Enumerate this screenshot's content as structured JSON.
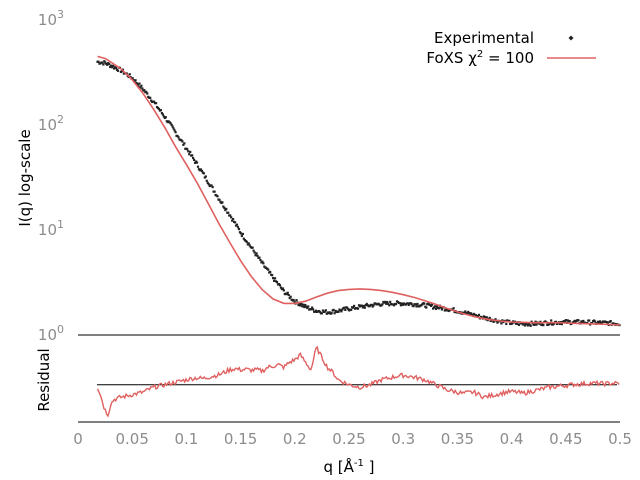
{
  "chart_data": [
    {
      "type": "scatter",
      "panel": "fit",
      "title": "",
      "xlabel": "",
      "ylabel": "I(q) log-scale",
      "yscale": "log",
      "xlim": [
        0,
        0.5
      ],
      "ylim": [
        1,
        1000
      ],
      "yticks": [
        {
          "value": 1,
          "base": "10",
          "exp": "0"
        },
        {
          "value": 10,
          "base": "10",
          "exp": "1"
        },
        {
          "value": 100,
          "base": "10",
          "exp": "2"
        },
        {
          "value": 1000,
          "base": "10",
          "exp": "3"
        }
      ],
      "legend": {
        "position": "top-right",
        "experimental_label": "Experimental",
        "fit_label_prefix": "FoXS χ",
        "fit_label_sup": "2",
        "fit_label_suffix": " = 100"
      },
      "series": [
        {
          "name": "Experimental",
          "style": "points",
          "color": "#222222",
          "x": [
            0.018,
            0.025,
            0.03,
            0.04,
            0.05,
            0.06,
            0.07,
            0.08,
            0.09,
            0.1,
            0.11,
            0.12,
            0.13,
            0.14,
            0.15,
            0.16,
            0.17,
            0.18,
            0.19,
            0.2,
            0.21,
            0.22,
            0.23,
            0.24,
            0.25,
            0.26,
            0.27,
            0.28,
            0.29,
            0.3,
            0.31,
            0.32,
            0.33,
            0.34,
            0.35,
            0.36,
            0.37,
            0.38,
            0.39,
            0.4,
            0.41,
            0.42,
            0.43,
            0.44,
            0.45,
            0.46,
            0.47,
            0.48,
            0.49,
            0.5
          ],
          "y": [
            400,
            390,
            370,
            330,
            280,
            220,
            165,
            120,
            85,
            60,
            42,
            29,
            20,
            14,
            9.5,
            6.8,
            4.8,
            3.5,
            2.6,
            2.1,
            1.85,
            1.7,
            1.65,
            1.7,
            1.78,
            1.85,
            1.92,
            1.98,
            2.0,
            2.0,
            1.97,
            1.92,
            1.85,
            1.78,
            1.7,
            1.6,
            1.5,
            1.42,
            1.35,
            1.3,
            1.28,
            1.28,
            1.3,
            1.32,
            1.33,
            1.33,
            1.32,
            1.31,
            1.3,
            1.28
          ]
        },
        {
          "name": "FoXS χ2 = 100",
          "style": "line",
          "color": "#e06060",
          "x": [
            0.018,
            0.025,
            0.03,
            0.04,
            0.05,
            0.06,
            0.07,
            0.08,
            0.09,
            0.1,
            0.11,
            0.12,
            0.13,
            0.14,
            0.15,
            0.16,
            0.17,
            0.18,
            0.19,
            0.2,
            0.21,
            0.22,
            0.23,
            0.24,
            0.25,
            0.26,
            0.27,
            0.28,
            0.29,
            0.3,
            0.31,
            0.32,
            0.33,
            0.34,
            0.35,
            0.36,
            0.37,
            0.38,
            0.39,
            0.4,
            0.41,
            0.42,
            0.43,
            0.44,
            0.45,
            0.46,
            0.47,
            0.48,
            0.49,
            0.5
          ],
          "y": [
            450,
            430,
            400,
            340,
            270,
            200,
            140,
            95,
            62,
            42,
            28,
            18,
            11.5,
            7.6,
            5.1,
            3.6,
            2.7,
            2.2,
            2.0,
            2.0,
            2.1,
            2.3,
            2.5,
            2.65,
            2.72,
            2.75,
            2.72,
            2.65,
            2.55,
            2.42,
            2.28,
            2.12,
            1.96,
            1.8,
            1.66,
            1.55,
            1.46,
            1.4,
            1.36,
            1.33,
            1.32,
            1.31,
            1.31,
            1.31,
            1.3,
            1.29,
            1.28,
            1.27,
            1.26,
            1.25
          ]
        }
      ]
    },
    {
      "type": "line",
      "panel": "residual",
      "title": "",
      "xlabel_prefix": "q [Å",
      "xlabel_sup": "-1",
      "xlabel_suffix": " ]",
      "ylabel": "Residual",
      "xlim": [
        0,
        0.5
      ],
      "ylim": [
        -1.5,
        2.0
      ],
      "xticks": [
        "0",
        "0.05",
        "0.1",
        "0.15",
        "0.2",
        "0.25",
        "0.3",
        "0.35",
        "0.4",
        "0.45",
        "0.5"
      ],
      "xtick_values": [
        0,
        0.05,
        0.1,
        0.15,
        0.2,
        0.25,
        0.3,
        0.35,
        0.4,
        0.45,
        0.5
      ],
      "zero_line": 0,
      "series": [
        {
          "name": "",
          "color": "#e06060",
          "x": [
            0.018,
            0.02,
            0.022,
            0.024,
            0.026,
            0.028,
            0.03,
            0.033,
            0.036,
            0.04,
            0.045,
            0.05,
            0.055,
            0.06,
            0.065,
            0.07,
            0.075,
            0.08,
            0.085,
            0.09,
            0.095,
            0.1,
            0.105,
            0.11,
            0.115,
            0.12,
            0.125,
            0.13,
            0.135,
            0.14,
            0.145,
            0.15,
            0.155,
            0.16,
            0.165,
            0.17,
            0.175,
            0.18,
            0.185,
            0.19,
            0.195,
            0.2,
            0.205,
            0.21,
            0.215,
            0.22,
            0.225,
            0.23,
            0.235,
            0.24,
            0.245,
            0.25,
            0.255,
            0.26,
            0.265,
            0.27,
            0.275,
            0.28,
            0.285,
            0.29,
            0.295,
            0.3,
            0.305,
            0.31,
            0.315,
            0.32,
            0.325,
            0.33,
            0.335,
            0.34,
            0.345,
            0.35,
            0.355,
            0.36,
            0.365,
            0.37,
            0.375,
            0.38,
            0.385,
            0.39,
            0.395,
            0.4,
            0.405,
            0.41,
            0.415,
            0.42,
            0.425,
            0.43,
            0.435,
            0.44,
            0.445,
            0.45,
            0.455,
            0.46,
            0.465,
            0.47,
            0.475,
            0.48,
            0.485,
            0.49,
            0.495,
            0.5
          ],
          "y": [
            -0.1,
            -0.3,
            -0.6,
            -0.9,
            -1.1,
            -1.2,
            -0.8,
            -0.6,
            -0.55,
            -0.5,
            -0.45,
            -0.4,
            -0.35,
            -0.3,
            -0.2,
            -0.1,
            -0.05,
            0.0,
            0.05,
            0.1,
            0.15,
            0.2,
            0.25,
            0.28,
            0.25,
            0.3,
            0.35,
            0.4,
            0.5,
            0.6,
            0.65,
            0.6,
            0.62,
            0.58,
            0.6,
            0.55,
            0.7,
            0.75,
            0.8,
            0.7,
            0.9,
            1.0,
            1.2,
            0.9,
            0.6,
            1.5,
            1.1,
            0.7,
            0.5,
            0.2,
            0.1,
            0.0,
            -0.05,
            -0.1,
            -0.05,
            0.0,
            0.1,
            0.2,
            0.25,
            0.3,
            0.35,
            0.38,
            0.35,
            0.3,
            0.25,
            0.2,
            0.1,
            0.0,
            -0.1,
            -0.2,
            -0.25,
            -0.3,
            -0.35,
            -0.32,
            -0.3,
            -0.4,
            -0.5,
            -0.45,
            -0.4,
            -0.35,
            -0.3,
            -0.28,
            -0.3,
            -0.35,
            -0.3,
            -0.25,
            -0.2,
            -0.15,
            -0.1,
            -0.08,
            -0.05,
            -0.03,
            0.0,
            0.02,
            0.03,
            0.05,
            0.06,
            0.05,
            0.04,
            0.05,
            0.06,
            0.05
          ]
        }
      ]
    }
  ]
}
